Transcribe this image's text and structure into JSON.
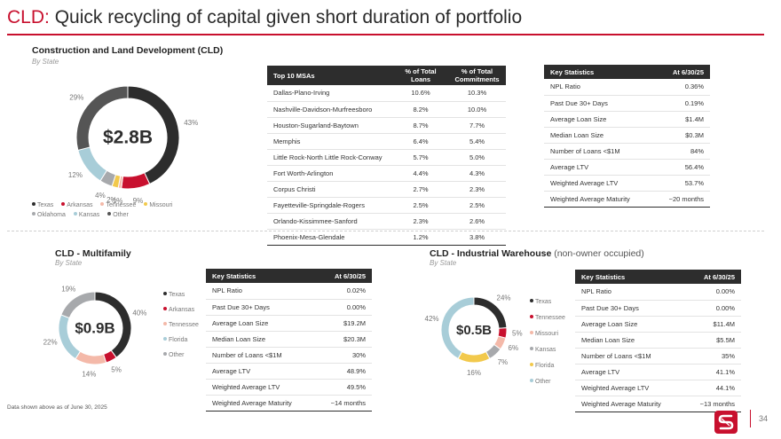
{
  "page": {
    "title_prefix": "CLD:",
    "title_rest": " Quick recycling of capital given short duration of portfolio",
    "footnote": "Data shown above as of June 30, 2025",
    "page_number": "34",
    "logo_icon": "brand-s-logo-icon"
  },
  "colors": {
    "accent": "#c8102e",
    "texas": "#2d2d2d",
    "arkansas": "#c8102e",
    "tennessee": "#f4b9a9",
    "missouri": "#f2c94c",
    "oklahoma": "#a7a9ac",
    "kansas": "#a8cdd8",
    "other": "#555555"
  },
  "cld": {
    "title": "Construction and Land Development (CLD)",
    "subtitle": "By State",
    "total": "$2.8B",
    "legend": [
      {
        "name": "Texas",
        "color": "#2d2d2d"
      },
      {
        "name": "Arkansas",
        "color": "#c8102e"
      },
      {
        "name": "Tennessee",
        "color": "#f4b9a9"
      },
      {
        "name": "Missouri",
        "color": "#f2c94c"
      },
      {
        "name": "Oklahoma",
        "color": "#a7a9ac"
      },
      {
        "name": "Kansas",
        "color": "#a8cdd8"
      },
      {
        "name": "Other",
        "color": "#555555"
      }
    ],
    "msa_table": {
      "headers": [
        "Top 10 MSAs",
        "% of Total Loans",
        "% of Total Commitments"
      ],
      "rows": [
        [
          "Dallas-Plano-Irving",
          "10.6%",
          "10.3%"
        ],
        [
          "Nashville-Davidson-Murfreesboro",
          "8.2%",
          "10.0%"
        ],
        [
          "Houston-Sugarland-Baytown",
          "8.7%",
          "7.7%"
        ],
        [
          "Memphis",
          "6.4%",
          "5.4%"
        ],
        [
          "Little Rock-North Little Rock-Conway",
          "5.7%",
          "5.0%"
        ],
        [
          "Fort Worth-Arlington",
          "4.4%",
          "4.3%"
        ],
        [
          "Corpus Christi",
          "2.7%",
          "2.3%"
        ],
        [
          "Fayetteville-Springdale-Rogers",
          "2.5%",
          "2.5%"
        ],
        [
          "Orlando-Kissimmee-Sanford",
          "2.3%",
          "2.6%"
        ],
        [
          "Phoenix-Mesa-Glendale",
          "1.2%",
          "3.8%"
        ]
      ]
    },
    "key_stats": {
      "headers": [
        "Key Statistics",
        "At 6/30/25"
      ],
      "rows": [
        [
          "NPL Ratio",
          "0.36%"
        ],
        [
          "Past Due 30+ Days",
          "0.19%"
        ],
        [
          "Average Loan Size",
          "$1.4M"
        ],
        [
          "Median Loan Size",
          "$0.3M"
        ],
        [
          "Number of Loans <$1M",
          "84%"
        ],
        [
          "Average LTV",
          "56.4%"
        ],
        [
          "Weighted Average LTV",
          "53.7%"
        ],
        [
          "Weighted Average Maturity",
          "~20 months"
        ]
      ]
    }
  },
  "multifamily": {
    "title": "CLD - Multifamily",
    "subtitle": "By State",
    "total": "$0.9B",
    "legend": [
      {
        "name": "Texas",
        "color": "#2d2d2d"
      },
      {
        "name": "Arkansas",
        "color": "#c8102e"
      },
      {
        "name": "Tennessee",
        "color": "#f4b9a9"
      },
      {
        "name": "Florida",
        "color": "#a8cdd8"
      },
      {
        "name": "Other",
        "color": "#a7a9ac"
      }
    ],
    "key_stats": {
      "headers": [
        "Key Statistics",
        "At 6/30/25"
      ],
      "rows": [
        [
          "NPL Ratio",
          "0.02%"
        ],
        [
          "Past Due 30+ Days",
          "0.00%"
        ],
        [
          "Average Loan Size",
          "$19.2M"
        ],
        [
          "Median Loan Size",
          "$20.3M"
        ],
        [
          "Number of Loans <$1M",
          "30%"
        ],
        [
          "Average LTV",
          "48.9%"
        ],
        [
          "Weighted Average LTV",
          "49.5%"
        ],
        [
          "Weighted Average Maturity",
          "~14 months"
        ]
      ]
    }
  },
  "industrial": {
    "title": "CLD - Industrial Warehouse",
    "title_suffix": "(non-owner occupied)",
    "subtitle": "By State",
    "total": "$0.5B",
    "legend": [
      {
        "name": "Texas",
        "color": "#2d2d2d"
      },
      {
        "name": "Tennessee",
        "color": "#c8102e"
      },
      {
        "name": "Missouri",
        "color": "#f4b9a9"
      },
      {
        "name": "Kansas",
        "color": "#a7a9ac"
      },
      {
        "name": "Florida",
        "color": "#f2c94c"
      },
      {
        "name": "Other",
        "color": "#a8cdd8"
      }
    ],
    "key_stats": {
      "headers": [
        "Key Statistics",
        "At 6/30/25"
      ],
      "rows": [
        [
          "NPL Ratio",
          "0.00%"
        ],
        [
          "Past Due 30+ Days",
          "0.00%"
        ],
        [
          "Average Loan Size",
          "$11.4M"
        ],
        [
          "Median Loan Size",
          "$5.5M"
        ],
        [
          "Number of Loans <$1M",
          "35%"
        ],
        [
          "Average LTV",
          "41.1%"
        ],
        [
          "Weighted Average LTV",
          "44.1%"
        ],
        [
          "Weighted Average Maturity",
          "~13 months"
        ]
      ]
    }
  },
  "chart_data": [
    {
      "type": "pie",
      "categories": [
        "Texas",
        "Arkansas",
        "Tennessee",
        "Missouri",
        "Oklahoma",
        "Kansas",
        "Other"
      ],
      "values": [
        43,
        9,
        1,
        2,
        4,
        12,
        29
      ],
      "labels": [
        "43%",
        "9%",
        "1%",
        "2%",
        "4%",
        "12%",
        "29%"
      ],
      "colors": [
        "#2d2d2d",
        "#c8102e",
        "#f4b9a9",
        "#f2c94c",
        "#a7a9ac",
        "#a8cdd8",
        "#555555"
      ],
      "center_label": "$2.8B",
      "legend_position": "bottom"
    },
    {
      "type": "pie",
      "categories": [
        "Texas",
        "Arkansas",
        "Tennessee",
        "Florida",
        "Other"
      ],
      "values": [
        40,
        5,
        14,
        22,
        19
      ],
      "labels": [
        "40%",
        "5%",
        "14%",
        "22%",
        "19%"
      ],
      "colors": [
        "#2d2d2d",
        "#c8102e",
        "#f4b9a9",
        "#a8cdd8",
        "#a7a9ac"
      ],
      "center_label": "$0.9B",
      "legend_position": "right"
    },
    {
      "type": "pie",
      "categories": [
        "Texas",
        "Tennessee",
        "Missouri",
        "Kansas",
        "Florida",
        "Other"
      ],
      "values": [
        24,
        5,
        6,
        7,
        16,
        42
      ],
      "labels": [
        "24%",
        "5%",
        "6%",
        "7%",
        "16%",
        "42%"
      ],
      "colors": [
        "#2d2d2d",
        "#c8102e",
        "#f4b9a9",
        "#a7a9ac",
        "#f2c94c",
        "#a8cdd8"
      ],
      "center_label": "$0.5B",
      "legend_position": "right"
    }
  ]
}
